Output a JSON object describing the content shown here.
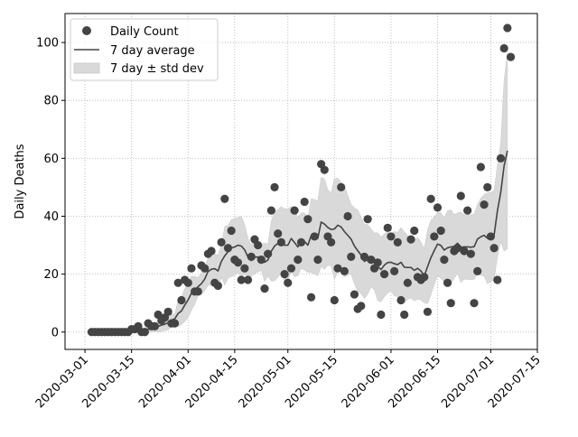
{
  "chart_data": {
    "type": "scatter",
    "title": "",
    "xlabel": "",
    "ylabel": "Daily Deaths",
    "xlim": [
      "2020-02-24",
      "2020-07-15"
    ],
    "ylim": [
      -6,
      110
    ],
    "grid": true,
    "legend_position": "top-left",
    "x_ticks": [
      "2020-03-01",
      "2020-03-15",
      "2020-04-01",
      "2020-04-15",
      "2020-05-01",
      "2020-05-15",
      "2020-06-01",
      "2020-06-15",
      "2020-07-01",
      "2020-07-15"
    ],
    "y_ticks": [
      0,
      20,
      40,
      60,
      80,
      100
    ],
    "start_date": "2020-03-03",
    "legend": {
      "daily": "Daily Count",
      "avg": "7 day average",
      "band": "7 day ± std dev"
    },
    "series": [
      {
        "name": "Daily Count",
        "kind": "points",
        "values": [
          0,
          0,
          0,
          0,
          0,
          0,
          0,
          0,
          0,
          0,
          0,
          0,
          1,
          1,
          2,
          0,
          0,
          3,
          2,
          2,
          6,
          4,
          5,
          7,
          3,
          3,
          17,
          11,
          18,
          17,
          22,
          14,
          14,
          23,
          22,
          27,
          28,
          17,
          16,
          31,
          46,
          29,
          35,
          25,
          24,
          18,
          22,
          18,
          26,
          32,
          30,
          25,
          15,
          27,
          42,
          50,
          34,
          31,
          20,
          17,
          22,
          42,
          25,
          31,
          45,
          39,
          12,
          33,
          25,
          58,
          56,
          33,
          31,
          11,
          22,
          50,
          21,
          40,
          26,
          13,
          8,
          9,
          26,
          39,
          25,
          22,
          24,
          6,
          20,
          36,
          33,
          21,
          31,
          11,
          6,
          17,
          32,
          35,
          19,
          18,
          19,
          7,
          46,
          33,
          43,
          35,
          25,
          17,
          10,
          28,
          29,
          47,
          28,
          42,
          27,
          10,
          21,
          57,
          44,
          50,
          33,
          29,
          18,
          60,
          98,
          105,
          95
        ]
      },
      {
        "name": "7 day average",
        "kind": "line",
        "values": [
          0,
          0,
          0,
          0,
          0,
          0,
          0,
          0,
          0,
          0,
          0,
          0,
          0.1,
          0.3,
          0.6,
          0.6,
          0.6,
          1,
          1.1,
          1.4,
          2,
          2.4,
          2.7,
          3.3,
          4.1,
          4.6,
          6.4,
          7.3,
          9.3,
          11.1,
          13.4,
          14.4,
          15.7,
          16.7,
          18.3,
          20.9,
          21.7,
          21.9,
          21.1,
          24.4,
          26.3,
          27.7,
          29,
          29.4,
          30,
          29.7,
          28.4,
          25.9,
          24.7,
          25.9,
          25.9,
          25.9,
          24.1,
          24.9,
          27.9,
          29.7,
          30.6,
          31.9,
          30,
          30,
          32.3,
          30.9,
          29.4,
          31.6,
          31.3,
          30,
          33.3,
          32.9,
          32.4,
          38,
          37.3,
          36.1,
          35.4,
          35.6,
          36.9,
          36.3,
          34.7,
          33.4,
          32.1,
          29.7,
          28.1,
          26.6,
          24.4,
          25.1,
          25.6,
          24.4,
          22.6,
          21.6,
          23.1,
          24,
          24.1,
          23.6,
          23.3,
          24.1,
          22.4,
          22.3,
          22.3,
          21.3,
          22,
          21.1,
          19.4,
          22.6,
          25.7,
          28.1,
          30.4,
          29.9,
          28.3,
          29.1,
          29.4,
          29.6,
          30.7,
          29.3,
          29.4,
          29.4,
          29.3,
          29.5,
          32.1,
          32.9,
          33.4,
          32.4,
          32.9,
          33.5,
          41.9,
          48.3,
          57.4,
          62.6
        ]
      },
      {
        "name": "7 day ± std dev",
        "kind": "band",
        "std": [
          0,
          0,
          0,
          0,
          0,
          0,
          0,
          0,
          0,
          0,
          0,
          0,
          0.4,
          0.5,
          0.8,
          0.8,
          0.8,
          1.1,
          1.2,
          1.2,
          2,
          2.1,
          2.2,
          2.5,
          2.1,
          1.6,
          4.6,
          4.7,
          5.6,
          6.1,
          5.8,
          4.8,
          3.1,
          3.8,
          4,
          4.7,
          5.6,
          5,
          5.5,
          5.4,
          10.1,
          9.1,
          9.8,
          9.8,
          9.5,
          10.3,
          8.6,
          6.5,
          5.4,
          5.7,
          5.2,
          4.5,
          6.6,
          5.5,
          10.3,
          12,
          11.6,
          11.4,
          12.5,
          12.5,
          11.1,
          11.8,
          10,
          9.6,
          9.9,
          9.4,
          12.7,
          12.9,
          12.9,
          15.4,
          15.6,
          13,
          12.6,
          17.4,
          16.2,
          15.4,
          15.7,
          13.8,
          12,
          13.1,
          14.1,
          13.2,
          12.8,
          12,
          10,
          9.8,
          11.7,
          11.2,
          10.8,
          10.6,
          9.8,
          11.1,
          11.1,
          12,
          12.1,
          11,
          10.5,
          10.5,
          10.6,
          10,
          9.3,
          12.8,
          12.8,
          11.6,
          10.9,
          11.3,
          11.1,
          12.8,
          12.8,
          11,
          10.4,
          12.2,
          11.1,
          11.2,
          11.2,
          11.3,
          11.9,
          13.3,
          14.1,
          15.7,
          15.4,
          15.3,
          15.8,
          17,
          29.5,
          33.8,
          32.6
        ]
      }
    ]
  }
}
